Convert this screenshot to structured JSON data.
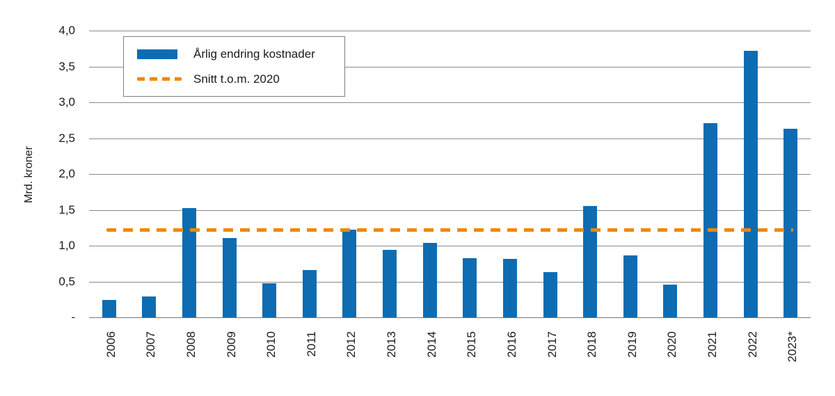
{
  "chart_data": {
    "type": "bar",
    "title": "",
    "ylabel": "Mrd. kroner",
    "xlabel": "",
    "categories": [
      "2006",
      "2007",
      "2008",
      "2009",
      "2010",
      "2011",
      "2012",
      "2013",
      "2014",
      "2015",
      "2016",
      "2017",
      "2018",
      "2019",
      "2020",
      "2021",
      "2022",
      "2023*"
    ],
    "series": [
      {
        "name": "Årlig endring kostnader",
        "type": "bar",
        "color": "#0e6cb2",
        "values": [
          0.24,
          0.29,
          1.52,
          1.11,
          0.48,
          0.66,
          1.22,
          0.94,
          1.04,
          0.83,
          0.82,
          0.63,
          1.55,
          0.86,
          0.46,
          2.71,
          3.72,
          2.63
        ]
      },
      {
        "name": "Snitt t.o.m. 2020",
        "type": "dashed-line",
        "color": "#f0880a",
        "value": 1.22
      }
    ],
    "ylim": [
      0,
      4.0
    ],
    "ytick_step": 0.5,
    "yticks": [
      {
        "label": "4,0",
        "value": 4.0
      },
      {
        "label": "3,5",
        "value": 3.5
      },
      {
        "label": "3,0",
        "value": 3.0
      },
      {
        "label": "2,5",
        "value": 2.5
      },
      {
        "label": "2,0",
        "value": 2.0
      },
      {
        "label": "1,5",
        "value": 1.5
      },
      {
        "label": "1,0",
        "value": 1.0
      },
      {
        "label": "0,5",
        "value": 0.5
      },
      {
        "label": "-",
        "value": 0.0
      }
    ],
    "decimal_separator": ",",
    "grid": "horizontal",
    "grid_color": "#8a8a8a",
    "text_color": "#1a1a1a",
    "legend_position": "top-left-inside"
  }
}
